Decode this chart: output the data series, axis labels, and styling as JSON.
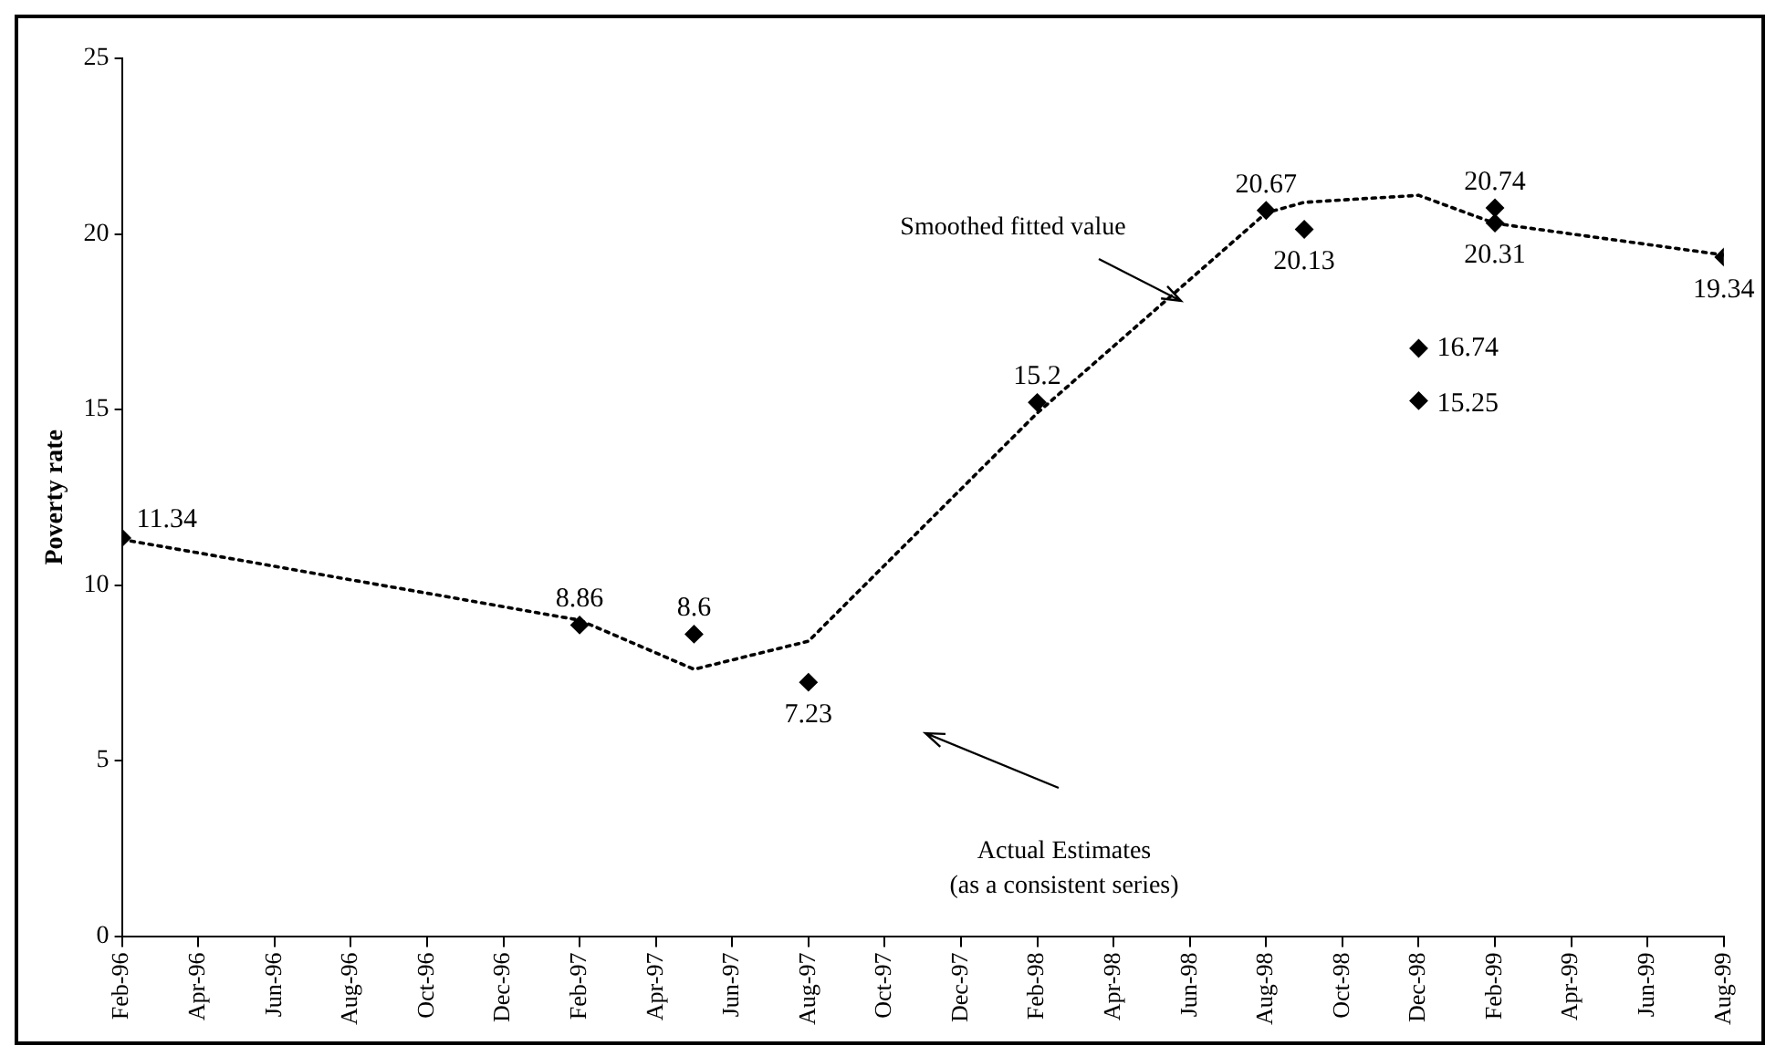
{
  "chart_data": {
    "type": "scatter",
    "ylabel": "Poverty rate",
    "xlim": [
      "1996-02",
      "1999-08"
    ],
    "xticks": [
      {
        "value": "1996-02",
        "label": "Feb-96"
      },
      {
        "value": "1996-04",
        "label": "Apr-96"
      },
      {
        "value": "1996-06",
        "label": "Jun-96"
      },
      {
        "value": "1996-08",
        "label": "Aug-96"
      },
      {
        "value": "1996-10",
        "label": "Oct-96"
      },
      {
        "value": "1996-12",
        "label": "Dec-96"
      },
      {
        "value": "1997-02",
        "label": "Feb-97"
      },
      {
        "value": "1997-04",
        "label": "Apr-97"
      },
      {
        "value": "1997-06",
        "label": "Jun-97"
      },
      {
        "value": "1997-08",
        "label": "Aug-97"
      },
      {
        "value": "1997-10",
        "label": "Oct-97"
      },
      {
        "value": "1997-12",
        "label": "Dec-97"
      },
      {
        "value": "1998-02",
        "label": "Feb-98"
      },
      {
        "value": "1998-04",
        "label": "Apr-98"
      },
      {
        "value": "1998-06",
        "label": "Jun-98"
      },
      {
        "value": "1998-08",
        "label": "Aug-98"
      },
      {
        "value": "1998-10",
        "label": "Oct-98"
      },
      {
        "value": "1998-12",
        "label": "Dec-98"
      },
      {
        "value": "1999-02",
        "label": "Feb-99"
      },
      {
        "value": "1999-04",
        "label": "Apr-99"
      },
      {
        "value": "1999-06",
        "label": "Jun-99"
      },
      {
        "value": "1999-08",
        "label": "Aug-99"
      }
    ],
    "ylim": [
      0,
      25
    ],
    "yticks": [
      0,
      5,
      10,
      15,
      20,
      25
    ],
    "grid": false,
    "legend": false,
    "series": [
      {
        "type": "line",
        "line_style": "dotted",
        "marker": "none",
        "color": "#000000",
        "x": [
          "1996-02",
          "1997-02",
          "1997-05",
          "1997-08",
          "1998-02",
          "1998-08",
          "1998-09",
          "1998-12",
          "1999-02",
          "1999-08"
        ],
        "values": [
          11.3,
          9.0,
          7.6,
          8.4,
          14.9,
          20.6,
          20.9,
          21.1,
          20.3,
          19.4
        ]
      },
      {
        "marker": "diamond",
        "color": "#000000",
        "x": [
          "1996-02",
          "1997-02",
          "1997-05",
          "1997-08",
          "1998-02",
          "1998-08",
          "1998-09",
          "1998-12",
          "1998-12",
          "1999-02",
          "1999-02",
          "1999-08"
        ],
        "values": [
          11.34,
          8.86,
          8.6,
          7.23,
          15.2,
          20.67,
          20.13,
          16.74,
          15.25,
          20.74,
          20.31,
          19.34
        ],
        "value_labels": [
          "11.34",
          "8.86",
          "8.6",
          "7.23",
          "15.2",
          "20.67",
          "20.13",
          "16.74",
          "15.25",
          "20.74",
          "20.31",
          "19.34"
        ]
      }
    ],
    "annotations": [
      "Smoothed fitted value",
      "Actual Estimates\n(as a consistent series)"
    ]
  }
}
